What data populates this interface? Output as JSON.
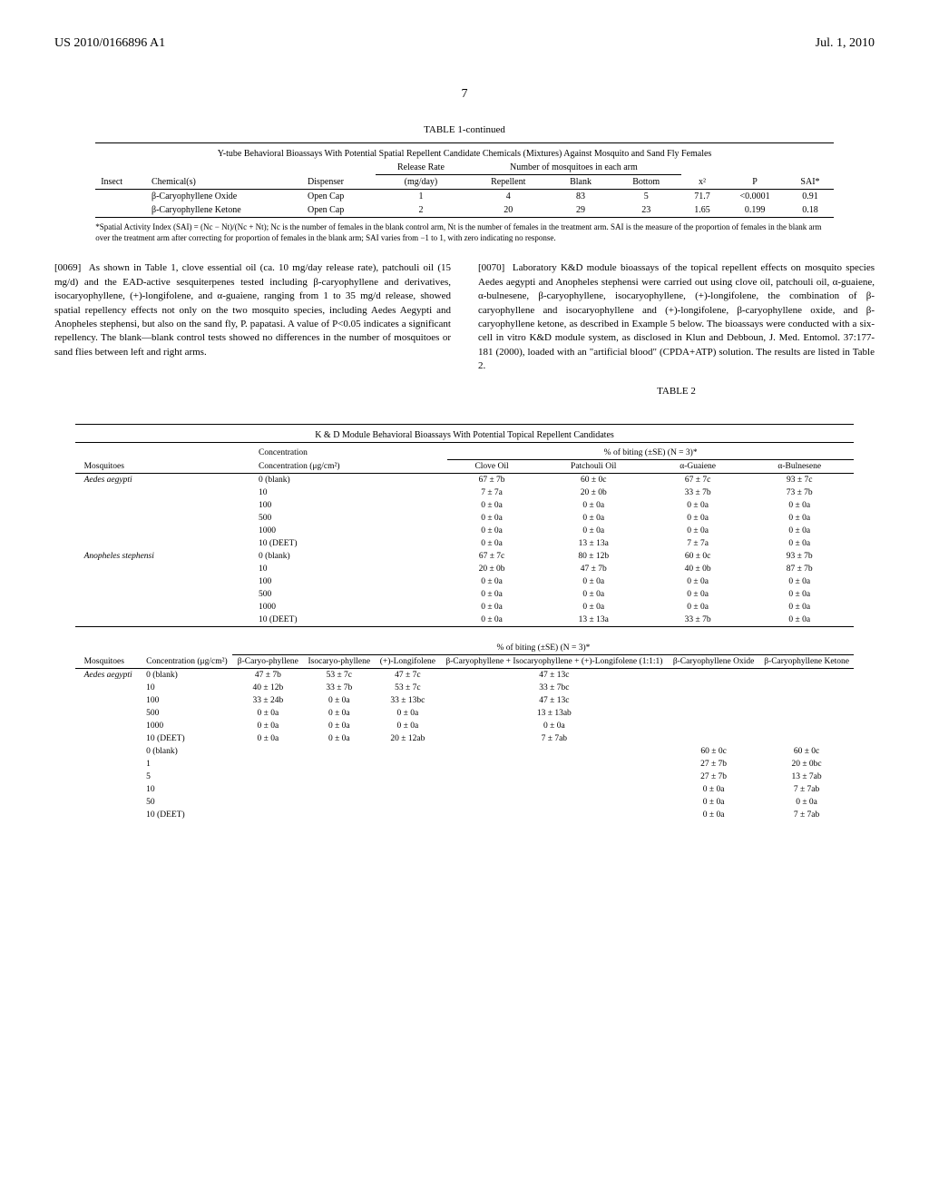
{
  "header": {
    "pub_number": "US 2010/0166896 A1",
    "date": "Jul. 1, 2010",
    "page_num": "7"
  },
  "table1": {
    "title": "TABLE 1-continued",
    "caption": "Y-tube Behavioral Bioassays With Potential Spatial Repellent Candidate Chemicals (Mixtures) Against Mosquito and Sand Fly Females",
    "header_group1": "Release Rate",
    "header_group2": "Number of mosquitoes in each arm",
    "columns": [
      "Insect",
      "Chemical(s)",
      "Dispenser",
      "(mg/day)",
      "Repellent",
      "Blank",
      "Bottom",
      "x²",
      "P",
      "SAI*"
    ],
    "rows": [
      [
        "",
        "β-Caryophyllene Oxide",
        "Open Cap",
        "1",
        "4",
        "83",
        "5",
        "71.7",
        "<0.0001",
        "0.91"
      ],
      [
        "",
        "β-Caryophyllene Ketone",
        "Open Cap",
        "2",
        "20",
        "29",
        "23",
        "1.65",
        "0.199",
        "0.18"
      ]
    ],
    "footnote": "*Spatial Activity Index (SAI) = (Nc − Nt)/(Nc + Nt); Nc is the number of females in the blank control arm, Nt is the number of females in the treatment arm. SAI is the measure of the proportion of females in the blank arm over the treatment arm after correcting for proportion of females in the blank arm; SAI varies from −1 to 1, with zero indicating no response."
  },
  "paragraphs": {
    "p1_num": "[0069]",
    "p1_text": "As shown in Table 1, clove essential oil (ca. 10 mg/day release rate), patchouli oil (15 mg/d) and the EAD-active sesquiterpenes tested including β-caryophyllene and derivatives, isocaryophyllene, (+)-longifolene, and α-guaiene, ranging from 1 to 35 mg/d release, showed spatial repellency effects not only on the two mosquito species, including Aedes Aegypti and Anopheles stephensi, but also on the sand fly, P. papatasi. A value of P<0.05 indicates a significant repellency. The blank—blank control tests showed no differences in the number of mosquitoes or sand flies between left and right arms.",
    "p2_num": "[0070]",
    "p2_text": "Laboratory K&D module bioassays of the topical repellent effects on mosquito species Aedes aegypti and Anopheles stephensi were carried out using clove oil, patchouli oil, α-guaiene, α-bulnesene, β-caryophyllene, isocaryophyllene, (+)-longifolene, the combination of β-caryophyllene and isocaryophyllene and (+)-longifolene, β-caryophyllene oxide, and β-caryophyllene ketone, as described in Example 5 below. The bioassays were conducted with a six-cell in vitro K&D module system, as disclosed in Klun and Debboun, J. Med. Entomol. 37:177-181 (2000), loaded with an \"artificial blood\" (CPDA+ATP) solution. The results are listed in Table 2."
  },
  "table2": {
    "title": "TABLE 2",
    "caption": "K & D Module Behavioral Bioassays With Potential Topical Repellent Candidates",
    "part_a": {
      "header_group": "% of biting (±SE) (N = 3)*",
      "columns": [
        "Mosquitoes",
        "Concentration (μg/cm²)",
        "Clove Oil",
        "Patchouli Oil",
        "α-Guaiene",
        "α-Bulnesene"
      ],
      "rows": [
        [
          "Aedes aegypti",
          "0 (blank)",
          "67 ± 7b",
          "60 ± 0c",
          "67 ± 7c",
          "93 ± 7c"
        ],
        [
          "",
          "10",
          "7 ± 7a",
          "20 ± 0b",
          "33 ± 7b",
          "73 ± 7b"
        ],
        [
          "",
          "100",
          "0 ± 0a",
          "0 ± 0a",
          "0 ± 0a",
          "0 ± 0a"
        ],
        [
          "",
          "500",
          "0 ± 0a",
          "0 ± 0a",
          "0 ± 0a",
          "0 ± 0a"
        ],
        [
          "",
          "1000",
          "0 ± 0a",
          "0 ± 0a",
          "0 ± 0a",
          "0 ± 0a"
        ],
        [
          "",
          "10 (DEET)",
          "0 ± 0a",
          "13 ± 13a",
          "7 ± 7a",
          "0 ± 0a"
        ],
        [
          "Anopheles stephensi",
          "0 (blank)",
          "67 ± 7c",
          "80 ± 12b",
          "60 ± 0c",
          "93 ± 7b"
        ],
        [
          "",
          "10",
          "20 ± 0b",
          "47 ± 7b",
          "40 ± 0b",
          "87 ± 7b"
        ],
        [
          "",
          "100",
          "0 ± 0a",
          "0 ± 0a",
          "0 ± 0a",
          "0 ± 0a"
        ],
        [
          "",
          "500",
          "0 ± 0a",
          "0 ± 0a",
          "0 ± 0a",
          "0 ± 0a"
        ],
        [
          "",
          "1000",
          "0 ± 0a",
          "0 ± 0a",
          "0 ± 0a",
          "0 ± 0a"
        ],
        [
          "",
          "10 (DEET)",
          "0 ± 0a",
          "13 ± 13a",
          "33 ± 7b",
          "0 ± 0a"
        ]
      ]
    },
    "part_b": {
      "header_group": "% of biting (±SE) (N = 3)*",
      "columns": [
        "Mosquitoes",
        "Concentration (μg/cm²)",
        "β-Caryo-phyllene",
        "Isocaryo-phyllene",
        "(+)-Longifolene",
        "β-Caryophyllene + Isocaryophyllene + (+)-Longifolene (1:1:1)",
        "β-Caryophyllene Oxide",
        "β-Caryophyllene Ketone"
      ],
      "rows": [
        [
          "Aedes aegypti",
          "0 (blank)",
          "47 ± 7b",
          "53 ± 7c",
          "47 ± 7c",
          "47 ± 13c",
          "",
          ""
        ],
        [
          "",
          "10",
          "40 ± 12b",
          "33 ± 7b",
          "53 ± 7c",
          "33 ± 7bc",
          "",
          ""
        ],
        [
          "",
          "100",
          "33 ± 24b",
          "0 ± 0a",
          "33 ± 13bc",
          "47 ± 13c",
          "",
          ""
        ],
        [
          "",
          "500",
          "0 ± 0a",
          "0 ± 0a",
          "0 ± 0a",
          "13 ± 13ab",
          "",
          ""
        ],
        [
          "",
          "1000",
          "0 ± 0a",
          "0 ± 0a",
          "0 ± 0a",
          "0 ± 0a",
          "",
          ""
        ],
        [
          "",
          "10 (DEET)",
          "0 ± 0a",
          "0 ± 0a",
          "20 ± 12ab",
          "7 ± 7ab",
          "",
          ""
        ],
        [
          "",
          "0 (blank)",
          "",
          "",
          "",
          "",
          "60 ± 0c",
          "60 ± 0c"
        ],
        [
          "",
          "1",
          "",
          "",
          "",
          "",
          "27 ± 7b",
          "20 ± 0bc"
        ],
        [
          "",
          "5",
          "",
          "",
          "",
          "",
          "27 ± 7b",
          "13 ± 7ab"
        ],
        [
          "",
          "10",
          "",
          "",
          "",
          "",
          "0 ± 0a",
          "7 ± 7ab"
        ],
        [
          "",
          "50",
          "",
          "",
          "",
          "",
          "0 ± 0a",
          "0 ± 0a"
        ],
        [
          "",
          "10 (DEET)",
          "",
          "",
          "",
          "",
          "0 ± 0a",
          "7 ± 7ab"
        ]
      ]
    }
  }
}
